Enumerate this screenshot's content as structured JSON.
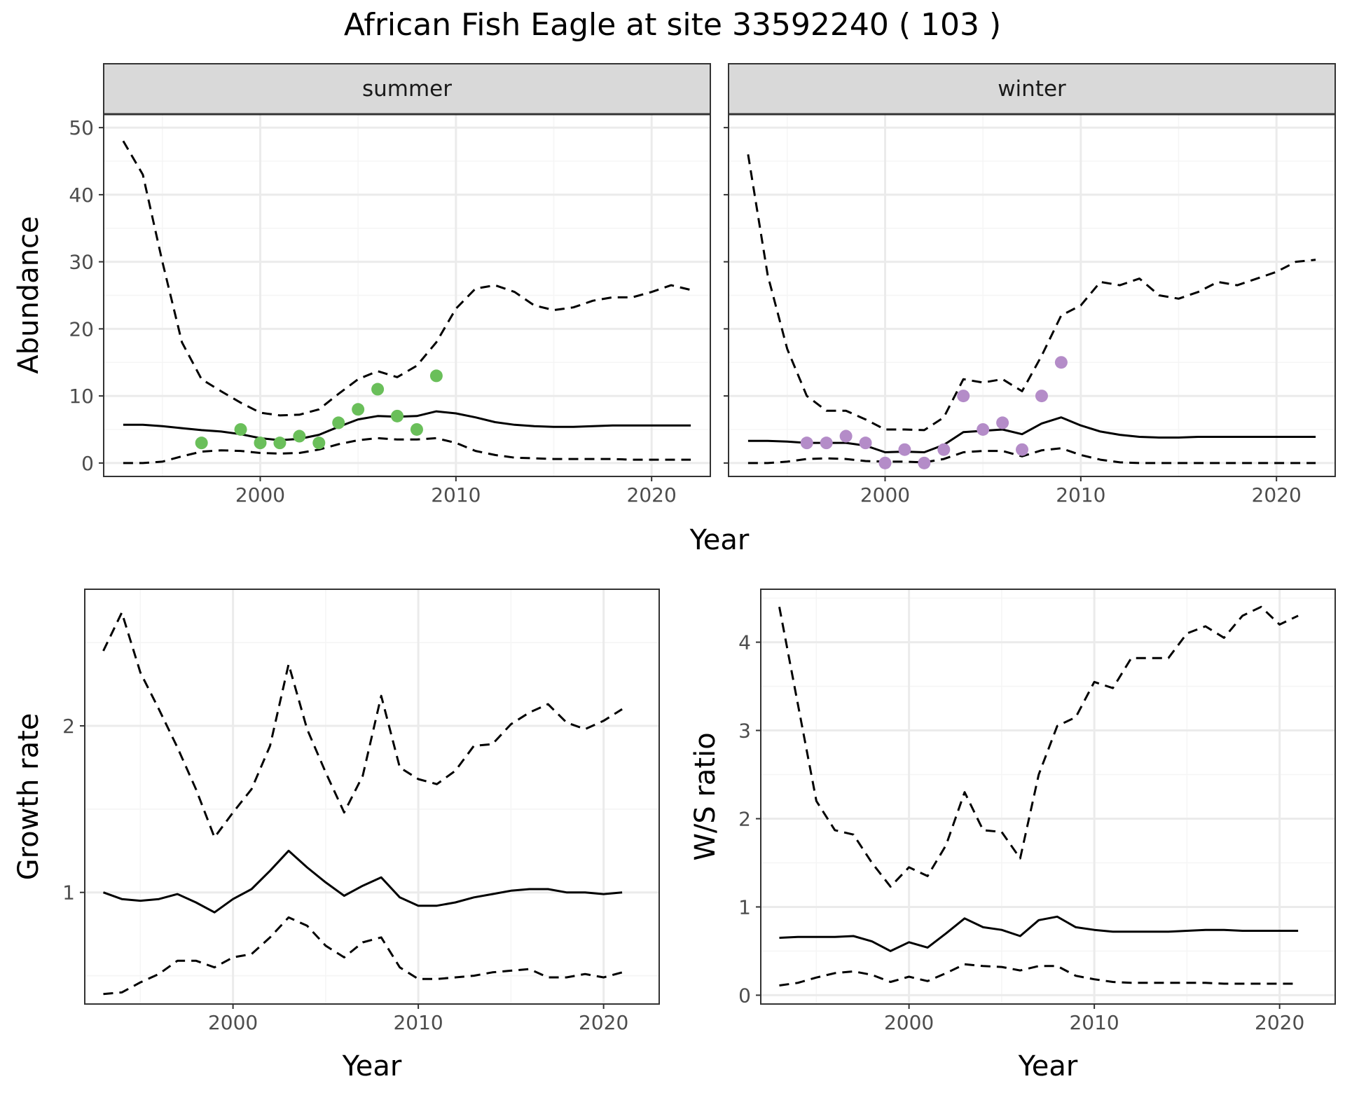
{
  "title": "African Fish Eagle at site 33592240 ( 103 )",
  "colors": {
    "summer_points": "#6abf5a",
    "winter_points": "#b48cc8",
    "line": "#000000",
    "grid_major": "#ebebeb",
    "grid_minor": "#f5f5f5",
    "strip_bg": "#d9d9d9",
    "frame": "#333333"
  },
  "chart_data": [
    {
      "type": "line",
      "panel": "summer",
      "strip_label": "summer",
      "xlabel": "Year",
      "ylabel": "Abundance",
      "xlim": [
        1992,
        2023
      ],
      "ylim": [
        -2,
        52
      ],
      "xticks": [
        2000,
        2010,
        2020
      ],
      "yticks": [
        0,
        10,
        20,
        30,
        40,
        50
      ],
      "x": [
        1993,
        1994,
        1995,
        1996,
        1997,
        1998,
        1999,
        2000,
        2001,
        2002,
        2003,
        2004,
        2005,
        2006,
        2007,
        2008,
        2009,
        2010,
        2011,
        2012,
        2013,
        2014,
        2015,
        2016,
        2017,
        2018,
        2019,
        2020,
        2021,
        2022
      ],
      "series": [
        {
          "role": "estimate",
          "style": "solid",
          "values": [
            5.7,
            5.7,
            5.5,
            5.2,
            4.9,
            4.7,
            4.3,
            3.7,
            3.4,
            3.6,
            4.2,
            5.4,
            6.5,
            7.0,
            6.9,
            7.0,
            7.7,
            7.4,
            6.8,
            6.1,
            5.7,
            5.5,
            5.4,
            5.4,
            5.5,
            5.6,
            5.6,
            5.6,
            5.6,
            5.6
          ]
        },
        {
          "role": "upper",
          "style": "dashed",
          "values": [
            48,
            43,
            30,
            18,
            12.5,
            10.7,
            9,
            7.5,
            7.1,
            7.2,
            8.0,
            10.3,
            12.5,
            13.7,
            12.8,
            14.5,
            18.0,
            23.0,
            26.0,
            26.5,
            25.5,
            23.5,
            22.8,
            23.2,
            24.2,
            24.7,
            24.7,
            25.5,
            26.5,
            25.8
          ]
        },
        {
          "role": "lower",
          "style": "dashed",
          "values": [
            0.0,
            0.0,
            0.2,
            1.0,
            1.7,
            1.9,
            1.8,
            1.5,
            1.4,
            1.5,
            2.0,
            2.8,
            3.4,
            3.7,
            3.5,
            3.5,
            3.7,
            3.0,
            1.8,
            1.2,
            0.8,
            0.7,
            0.6,
            0.6,
            0.6,
            0.6,
            0.5,
            0.5,
            0.5,
            0.5
          ]
        }
      ],
      "points": {
        "x": [
          1997,
          1999,
          2000,
          2001,
          2002,
          2003,
          2004,
          2005,
          2006,
          2007,
          2008,
          2009
        ],
        "y": [
          3,
          5,
          3,
          3,
          4,
          3,
          6,
          8,
          11,
          7,
          5,
          13
        ]
      }
    },
    {
      "type": "line",
      "panel": "winter",
      "strip_label": "winter",
      "xlabel": "Year",
      "ylabel": "",
      "xlim": [
        1992,
        2023
      ],
      "ylim": [
        -2,
        52
      ],
      "xticks": [
        2000,
        2010,
        2020
      ],
      "yticks": [],
      "x": [
        1993,
        1994,
        1995,
        1996,
        1997,
        1998,
        1999,
        2000,
        2001,
        2002,
        2003,
        2004,
        2005,
        2006,
        2007,
        2008,
        2009,
        2010,
        2011,
        2012,
        2013,
        2014,
        2015,
        2016,
        2017,
        2018,
        2019,
        2020,
        2021,
        2022
      ],
      "series": [
        {
          "role": "estimate",
          "style": "solid",
          "values": [
            3.3,
            3.3,
            3.2,
            3.0,
            3.0,
            3.0,
            2.6,
            1.6,
            1.7,
            1.6,
            2.7,
            4.6,
            4.8,
            5.0,
            4.3,
            5.9,
            6.8,
            5.6,
            4.7,
            4.2,
            3.9,
            3.8,
            3.8,
            3.9,
            3.9,
            3.9,
            3.9,
            3.9,
            3.9,
            3.9
          ]
        },
        {
          "role": "upper",
          "style": "dashed",
          "values": [
            46,
            28,
            17,
            10,
            7.8,
            7.8,
            6.5,
            5.0,
            5.0,
            4.9,
            6.8,
            12.5,
            12.0,
            12.5,
            10.7,
            16.0,
            22.0,
            23.5,
            27.0,
            26.5,
            27.5,
            25.0,
            24.5,
            25.5,
            27.0,
            26.5,
            27.5,
            28.5,
            30.0,
            30.3
          ]
        },
        {
          "role": "lower",
          "style": "dashed",
          "values": [
            0.0,
            0.0,
            0.2,
            0.6,
            0.7,
            0.6,
            0.3,
            0.2,
            0.2,
            0.1,
            0.6,
            1.6,
            1.8,
            1.8,
            1.0,
            1.9,
            2.2,
            1.2,
            0.5,
            0.1,
            0.0,
            0.0,
            0.0,
            0.0,
            0.0,
            0.0,
            0.0,
            0.0,
            0.0,
            0.0
          ]
        }
      ],
      "points": {
        "x": [
          1996,
          1997,
          1998,
          1999,
          2000,
          2001,
          2002,
          2003,
          2004,
          2005,
          2006,
          2007,
          2008,
          2009
        ],
        "y": [
          3,
          3,
          4,
          3,
          0,
          2,
          0,
          2,
          10,
          5,
          6,
          2,
          10,
          15
        ]
      }
    },
    {
      "type": "line",
      "panel": "growth",
      "xlabel": "Year",
      "ylabel": "Growth rate",
      "xlim": [
        1992,
        2023
      ],
      "ylim": [
        0.33,
        2.82
      ],
      "xticks": [
        2000,
        2010,
        2020
      ],
      "yticks": [
        1,
        2
      ],
      "x": [
        1993,
        1994,
        1995,
        1996,
        1997,
        1998,
        1999,
        2000,
        2001,
        2002,
        2003,
        2004,
        2005,
        2006,
        2007,
        2008,
        2009,
        2010,
        2011,
        2012,
        2013,
        2014,
        2015,
        2016,
        2017,
        2018,
        2019,
        2020,
        2021
      ],
      "series": [
        {
          "role": "estimate",
          "style": "solid",
          "values": [
            1.0,
            0.96,
            0.95,
            0.96,
            0.99,
            0.94,
            0.88,
            0.96,
            1.02,
            1.13,
            1.25,
            1.15,
            1.06,
            0.98,
            1.04,
            1.09,
            0.97,
            0.92,
            0.92,
            0.94,
            0.97,
            0.99,
            1.01,
            1.02,
            1.02,
            1.0,
            1.0,
            0.99,
            1.0
          ]
        },
        {
          "role": "upper",
          "style": "dashed",
          "values": [
            2.45,
            2.68,
            2.32,
            2.1,
            1.87,
            1.62,
            1.33,
            1.48,
            1.62,
            1.88,
            2.37,
            1.98,
            1.72,
            1.48,
            1.7,
            2.18,
            1.75,
            1.68,
            1.65,
            1.73,
            1.88,
            1.89,
            2.01,
            2.08,
            2.13,
            2.02,
            1.98,
            2.03,
            2.1
          ]
        },
        {
          "role": "lower",
          "style": "dashed",
          "values": [
            0.39,
            0.4,
            0.46,
            0.51,
            0.59,
            0.59,
            0.55,
            0.61,
            0.63,
            0.73,
            0.85,
            0.8,
            0.68,
            0.61,
            0.7,
            0.73,
            0.55,
            0.48,
            0.48,
            0.49,
            0.5,
            0.52,
            0.53,
            0.54,
            0.49,
            0.49,
            0.51,
            0.49,
            0.52
          ]
        }
      ]
    },
    {
      "type": "line",
      "panel": "ws_ratio",
      "xlabel": "Year",
      "ylabel": "W/S ratio",
      "xlim": [
        1992,
        2023
      ],
      "ylim": [
        -0.1,
        4.6
      ],
      "xticks": [
        2000,
        2010,
        2020
      ],
      "yticks": [
        0,
        1,
        2,
        3,
        4
      ],
      "x": [
        1993,
        1994,
        1995,
        1996,
        1997,
        1998,
        1999,
        2000,
        2001,
        2002,
        2003,
        2004,
        2005,
        2006,
        2007,
        2008,
        2009,
        2010,
        2011,
        2012,
        2013,
        2014,
        2015,
        2016,
        2017,
        2018,
        2019,
        2020,
        2021
      ],
      "series": [
        {
          "role": "estimate",
          "style": "solid",
          "values": [
            0.65,
            0.66,
            0.66,
            0.66,
            0.67,
            0.61,
            0.5,
            0.6,
            0.54,
            0.7,
            0.87,
            0.77,
            0.74,
            0.67,
            0.85,
            0.89,
            0.77,
            0.74,
            0.72,
            0.72,
            0.72,
            0.72,
            0.73,
            0.74,
            0.74,
            0.73,
            0.73,
            0.73,
            0.73
          ]
        },
        {
          "role": "upper",
          "style": "dashed",
          "values": [
            4.4,
            3.3,
            2.2,
            1.87,
            1.82,
            1.5,
            1.23,
            1.45,
            1.35,
            1.7,
            2.3,
            1.87,
            1.85,
            1.55,
            2.5,
            3.05,
            3.15,
            3.55,
            3.48,
            3.82,
            3.82,
            3.82,
            4.1,
            4.18,
            4.05,
            4.3,
            4.4,
            4.2,
            4.3
          ]
        },
        {
          "role": "lower",
          "style": "dashed",
          "values": [
            0.11,
            0.14,
            0.2,
            0.25,
            0.27,
            0.23,
            0.15,
            0.21,
            0.16,
            0.25,
            0.35,
            0.33,
            0.32,
            0.28,
            0.33,
            0.33,
            0.22,
            0.18,
            0.15,
            0.14,
            0.14,
            0.14,
            0.14,
            0.14,
            0.13,
            0.13,
            0.13,
            0.13,
            0.13
          ]
        }
      ]
    }
  ]
}
